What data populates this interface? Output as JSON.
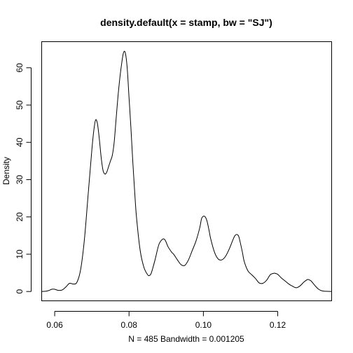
{
  "chart_data": {
    "type": "line",
    "title": "density.default(x = stamp, bw = \"SJ\")",
    "xlabel": "N = 485   Bandwidth = 0.001205",
    "ylabel": "Density",
    "xlim": [
      0.0565,
      0.1345
    ],
    "ylim": [
      -2.5,
      67
    ],
    "x_ticks": [
      0.06,
      0.08,
      0.1,
      0.12
    ],
    "x_tick_labels": [
      "0.06",
      "0.08",
      "0.10",
      "0.12"
    ],
    "y_ticks": [
      0,
      10,
      20,
      30,
      40,
      50,
      60
    ],
    "y_tick_labels": [
      "0",
      "10",
      "20",
      "30",
      "40",
      "50",
      "60"
    ],
    "grid": false,
    "series": [
      {
        "x": [
          0.0565,
          0.0575,
          0.0585,
          0.0592,
          0.06,
          0.061,
          0.062,
          0.063,
          0.064,
          0.065,
          0.066,
          0.067,
          0.068,
          0.069,
          0.07,
          0.0705,
          0.071,
          0.0715,
          0.072,
          0.0725,
          0.073,
          0.0735,
          0.074,
          0.0745,
          0.075,
          0.0755,
          0.076,
          0.0765,
          0.077,
          0.0775,
          0.078,
          0.0785,
          0.079,
          0.0795,
          0.08,
          0.0805,
          0.081,
          0.0815,
          0.082,
          0.083,
          0.084,
          0.085,
          0.0855,
          0.086,
          0.087,
          0.088,
          0.089,
          0.0897,
          0.0905,
          0.0915,
          0.092,
          0.093,
          0.094,
          0.095,
          0.096,
          0.097,
          0.098,
          0.099,
          0.0995,
          0.1,
          0.1005,
          0.101,
          0.1015,
          0.102,
          0.103,
          0.104,
          0.105,
          0.106,
          0.107,
          0.108,
          0.1085,
          0.109,
          0.1095,
          0.11,
          0.1105,
          0.111,
          0.112,
          0.113,
          0.114,
          0.115,
          0.116,
          0.117,
          0.118,
          0.119,
          0.1195,
          0.12,
          0.121,
          0.122,
          0.123,
          0.124,
          0.125,
          0.126,
          0.127,
          0.128,
          0.1285,
          0.129,
          0.13,
          0.131,
          0.132,
          0.133,
          0.1345
        ],
        "y": [
          0,
          0.05,
          0.3,
          0.6,
          0.6,
          0.3,
          0.4,
          1.2,
          2.2,
          2.0,
          2.5,
          6.0,
          14.0,
          26.0,
          38.0,
          43.0,
          46.0,
          45.0,
          41.0,
          36.0,
          32.5,
          31.5,
          32.0,
          33.5,
          35.0,
          36.5,
          40.0,
          46.0,
          52.0,
          57.0,
          61.0,
          64.0,
          64.0,
          60.0,
          52.0,
          44.0,
          35.0,
          27.0,
          20.0,
          11.0,
          6.5,
          4.5,
          4.3,
          5.0,
          8.5,
          12.5,
          14.0,
          13.8,
          12.0,
          10.5,
          10.0,
          8.5,
          7.2,
          7.0,
          8.5,
          11.0,
          13.5,
          17.0,
          19.5,
          20.2,
          20.0,
          18.8,
          16.5,
          14.0,
          10.5,
          8.7,
          8.5,
          9.5,
          11.5,
          14.0,
          15.0,
          15.3,
          14.8,
          12.8,
          10.5,
          8.0,
          5.5,
          4.5,
          3.5,
          2.3,
          2.2,
          3.0,
          4.5,
          4.9,
          4.8,
          4.6,
          3.6,
          2.8,
          2.0,
          1.4,
          1.0,
          1.5,
          2.5,
          3.2,
          3.1,
          2.8,
          1.6,
          0.6,
          0.15,
          0.05,
          0
        ]
      }
    ]
  }
}
